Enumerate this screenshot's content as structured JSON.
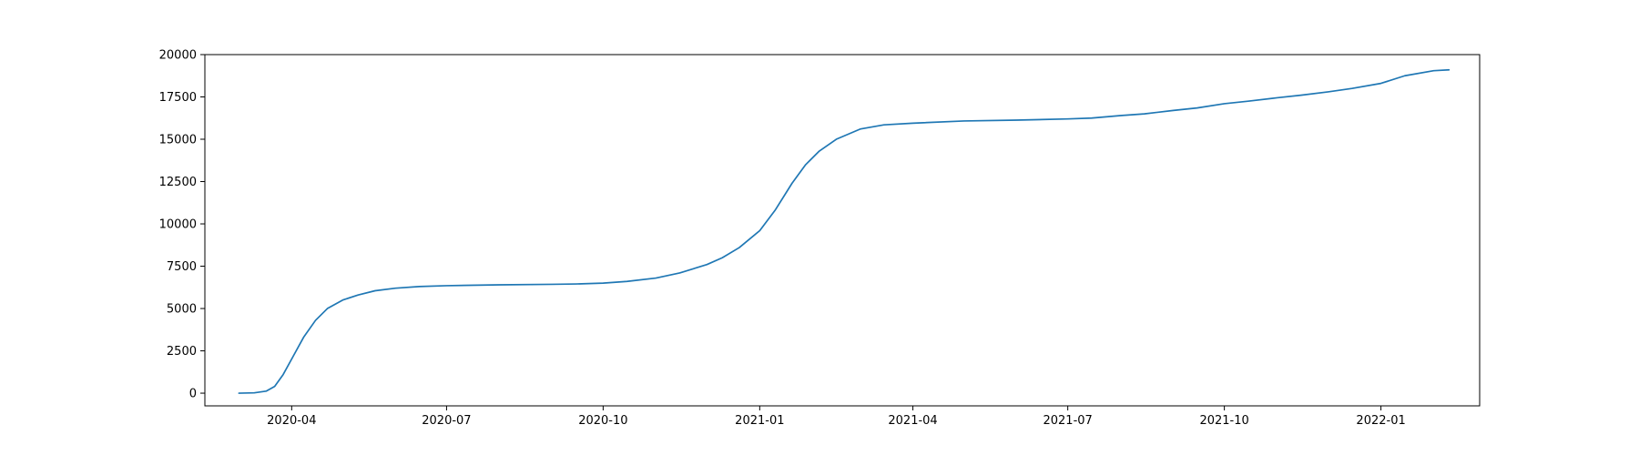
{
  "chart_data": {
    "type": "line",
    "title": "",
    "xlabel": "",
    "ylabel": "",
    "x_axis": {
      "type": "date",
      "range": [
        "2020-02-10",
        "2022-02-28"
      ]
    },
    "ylim": [
      -750,
      20000
    ],
    "grid": false,
    "legend": "none",
    "x_ticks": [
      {
        "date": "2020-04-01",
        "label": "2020-04"
      },
      {
        "date": "2020-07-01",
        "label": "2020-07"
      },
      {
        "date": "2020-10-01",
        "label": "2020-10"
      },
      {
        "date": "2021-01-01",
        "label": "2021-01"
      },
      {
        "date": "2021-04-01",
        "label": "2021-04"
      },
      {
        "date": "2021-07-01",
        "label": "2021-07"
      },
      {
        "date": "2021-10-01",
        "label": "2021-10"
      },
      {
        "date": "2022-01-01",
        "label": "2022-01"
      }
    ],
    "y_ticks": [
      {
        "value": 0,
        "label": "0"
      },
      {
        "value": 2500,
        "label": "2500"
      },
      {
        "value": 5000,
        "label": "5000"
      },
      {
        "value": 7500,
        "label": "7500"
      },
      {
        "value": 10000,
        "label": "10000"
      },
      {
        "value": 12500,
        "label": "12500"
      },
      {
        "value": 15000,
        "label": "15000"
      },
      {
        "value": 17500,
        "label": "17500"
      },
      {
        "value": 20000,
        "label": "20000"
      }
    ],
    "series": [
      {
        "color": "#1f77b4",
        "points": [
          [
            "2020-03-01",
            0
          ],
          [
            "2020-03-10",
            20
          ],
          [
            "2020-03-17",
            120
          ],
          [
            "2020-03-22",
            400
          ],
          [
            "2020-03-27",
            1100
          ],
          [
            "2020-04-02",
            2200
          ],
          [
            "2020-04-08",
            3300
          ],
          [
            "2020-04-15",
            4300
          ],
          [
            "2020-04-22",
            5000
          ],
          [
            "2020-05-01",
            5500
          ],
          [
            "2020-05-10",
            5800
          ],
          [
            "2020-05-20",
            6050
          ],
          [
            "2020-06-01",
            6200
          ],
          [
            "2020-06-15",
            6300
          ],
          [
            "2020-07-01",
            6350
          ],
          [
            "2020-08-01",
            6400
          ],
          [
            "2020-09-01",
            6430
          ],
          [
            "2020-09-15",
            6450
          ],
          [
            "2020-10-01",
            6500
          ],
          [
            "2020-10-15",
            6600
          ],
          [
            "2020-11-01",
            6800
          ],
          [
            "2020-11-15",
            7100
          ],
          [
            "2020-12-01",
            7600
          ],
          [
            "2020-12-10",
            8000
          ],
          [
            "2020-12-20",
            8600
          ],
          [
            "2021-01-01",
            9600
          ],
          [
            "2021-01-10",
            10800
          ],
          [
            "2021-01-20",
            12400
          ],
          [
            "2021-01-28",
            13500
          ],
          [
            "2021-02-05",
            14300
          ],
          [
            "2021-02-15",
            15000
          ],
          [
            "2021-03-01",
            15600
          ],
          [
            "2021-03-15",
            15850
          ],
          [
            "2021-04-01",
            15950
          ],
          [
            "2021-05-01",
            16080
          ],
          [
            "2021-06-01",
            16130
          ],
          [
            "2021-07-01",
            16200
          ],
          [
            "2021-07-15",
            16250
          ],
          [
            "2021-08-01",
            16400
          ],
          [
            "2021-08-15",
            16500
          ],
          [
            "2021-09-01",
            16700
          ],
          [
            "2021-09-15",
            16850
          ],
          [
            "2021-10-01",
            17100
          ],
          [
            "2021-10-15",
            17250
          ],
          [
            "2021-11-01",
            17450
          ],
          [
            "2021-11-15",
            17600
          ],
          [
            "2021-12-01",
            17800
          ],
          [
            "2021-12-15",
            18000
          ],
          [
            "2022-01-01",
            18300
          ],
          [
            "2022-01-15",
            18750
          ],
          [
            "2022-02-01",
            19050
          ],
          [
            "2022-02-10",
            19100
          ]
        ]
      }
    ]
  }
}
